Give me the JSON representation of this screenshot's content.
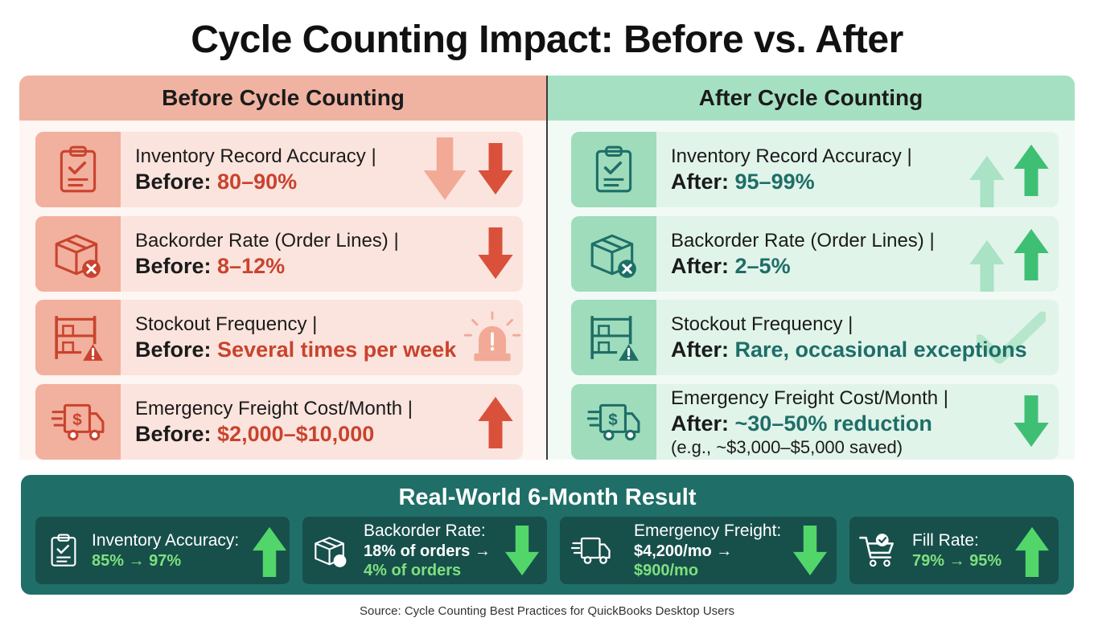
{
  "title": "Cycle Counting Impact: Before vs. After",
  "before": {
    "header": "Before Cycle Counting",
    "cards": [
      {
        "label": "Inventory Record Accuracy |",
        "prefix": "Before:",
        "value": "80–90%",
        "icon": "clipboard-check-icon",
        "arrows": [
          "arrow-down-faded",
          "arrow-down"
        ]
      },
      {
        "label": "Backorder Rate (Order Lines) |",
        "prefix": "Before:",
        "value": "8–12%",
        "icon": "box-x-icon",
        "arrows": [
          "arrow-down"
        ]
      },
      {
        "label": "Stockout Frequency |",
        "prefix": "Before:",
        "value": "Several times per week",
        "icon": "empty-shelf-warning-icon",
        "arrows": [
          "alarm-siren-icon"
        ]
      },
      {
        "label": "Emergency Freight Cost/Month |",
        "prefix": "Before:",
        "value": "$2,000–$10,000",
        "icon": "fast-truck-dollar-icon",
        "arrows": [
          "arrow-up"
        ]
      }
    ]
  },
  "after": {
    "header": "After Cycle Counting",
    "cards": [
      {
        "label": "Inventory Record Accuracy |",
        "prefix": "After:",
        "value": "95–99%",
        "icon": "clipboard-check-icon",
        "arrows": [
          "arrow-up-faded",
          "arrow-up"
        ]
      },
      {
        "label": "Backorder Rate (Order Lines) |",
        "prefix": "After:",
        "value": "2–5%",
        "icon": "box-x-icon",
        "arrows": [
          "arrow-up-faded",
          "arrow-up"
        ]
      },
      {
        "label": "Stockout Frequency |",
        "prefix": "After:",
        "value": "Rare, occasional exceptions",
        "icon": "empty-shelf-warning-icon",
        "arrows": [
          "checkmark-faded-icon"
        ]
      },
      {
        "label": "Emergency Freight Cost/Month |",
        "prefix": "After:",
        "value": "~30–50% reduction",
        "note": "(e.g., ~$3,000–$5,000 saved)",
        "icon": "fast-truck-dollar-icon",
        "arrows": [
          "arrow-down"
        ]
      }
    ]
  },
  "result": {
    "title": "Real-World 6-Month Result",
    "items": [
      {
        "label": "Inventory Accuracy:",
        "line1": "85% → 97%",
        "icon": "clipboard-check-icon",
        "arrow": "up"
      },
      {
        "label": "Backorder Rate:",
        "line1": "18% of orders →",
        "line2": "4% of orders",
        "icon": "box-x-icon",
        "arrow": "down"
      },
      {
        "label": "Emergency Freight:",
        "line1": "$4,200/mo →",
        "line2": "$900/mo",
        "icon": "fast-truck-icon",
        "arrow": "down"
      },
      {
        "label": "Fill Rate:",
        "line1": "79% → 95%",
        "icon": "cart-check-icon",
        "arrow": "up"
      }
    ]
  },
  "source": "Source: Cycle Counting Best Practices for QuickBooks Desktop Users",
  "colors": {
    "before_header": "#f0b3a2",
    "after_header": "#a6e0c2",
    "before_value": "#c9432e",
    "after_value": "#1e6e68",
    "result_bg": "#1f6f68",
    "result_green": "#7ee07f",
    "arrow_red": "#d9513b",
    "arrow_green": "#3fbf74"
  }
}
